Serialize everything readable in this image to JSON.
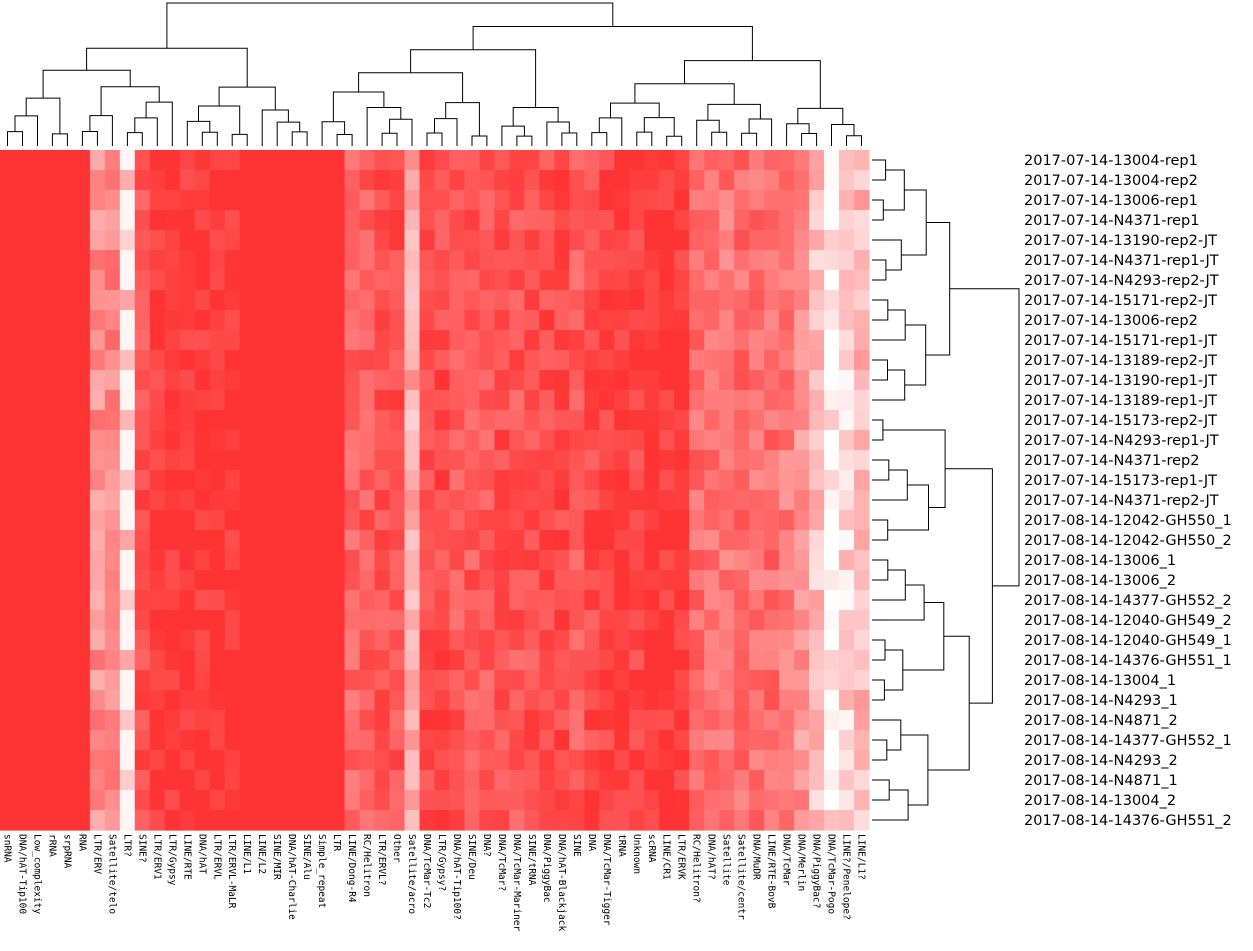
{
  "chart_data": {
    "type": "heatmap",
    "title": "",
    "colormap": {
      "high": "#ff3333",
      "low": "#ffffff"
    },
    "columns": [
      "snRNA",
      "DNA/hAT-Tip100",
      "Low_complexity",
      "rRNA",
      "srpRNA",
      "RNA",
      "LTR/ERV",
      "Satellite/telo",
      "LTR?",
      "SINE?",
      "LTR/ERV1",
      "LTR/Gypsy",
      "LINE/RTE",
      "DNA/hAT",
      "LTR/ERVL",
      "LTR/ERVL-MaLR",
      "LINE/L1",
      "LINE/L2",
      "SINE/MIR",
      "DNA/hAT-Charlie",
      "SINE/Alu",
      "Simple_repeat",
      "LTR",
      "LINE/Dong-R4",
      "RC/Helitron",
      "LTR/ERVL?",
      "Other",
      "Satellite/acro",
      "DNA/TcMar-Tc2",
      "LTR/Gypsy?",
      "DNA/hAT-Tip100?",
      "SINE/Deu",
      "DNA?",
      "DNA/TcMar?",
      "DNA/TcMar-Mariner",
      "SINE/tRNA",
      "DNA/PiggyBac",
      "DNA/hAT-Blackjack",
      "SINE",
      "DNA",
      "DNA/TcMar-Tigger",
      "tRNA",
      "Unknown",
      "scRNA",
      "LINE/CR1",
      "LTR/ERVK",
      "RC/Helitron?",
      "DNA/hAT?",
      "Satellite",
      "Satellite/centr",
      "DNA/MuDR",
      "LINE/RTE-BovB",
      "DNA/TcMar",
      "DNA/Merlin",
      "DNA/PiggyBac?",
      "DNA/TcMar-Pogo",
      "LINE?/Penelope?",
      "LINE/L1?"
    ],
    "rows": [
      "2017-07-14-13004-rep1",
      "2017-07-14-13004-rep2",
      "2017-07-14-13006-rep1",
      "2017-07-14-N4371-rep1",
      "2017-07-14-13190-rep2-JT",
      "2017-07-14-N4371-rep1-JT",
      "2017-07-14-N4293-rep2-JT",
      "2017-07-14-15171-rep2-JT",
      "2017-07-14-13006-rep2",
      "2017-07-14-15171-rep1-JT",
      "2017-07-14-13189-rep2-JT",
      "2017-07-14-13190-rep1-JT",
      "2017-07-14-13189-rep1-JT",
      "2017-07-14-15173-rep2-JT",
      "2017-07-14-N4293-rep1-JT",
      "2017-07-14-N4371-rep2",
      "2017-07-14-15173-rep1-JT",
      "2017-07-14-N4371-rep2-JT",
      "2017-08-14-12042-GH550_1",
      "2017-08-14-12042-GH550_2",
      "2017-08-14-13006_1",
      "2017-08-14-13006_2",
      "2017-08-14-14377-GH552_2",
      "2017-08-14-12040-GH549_2",
      "2017-08-14-12040-GH549_1",
      "2017-08-14-14376-GH551_1",
      "2017-08-14-13004_1",
      "2017-08-14-N4293_1",
      "2017-08-14-N4871_2",
      "2017-08-14-14377-GH552_1",
      "2017-08-14-N4293_2",
      "2017-08-14-N4871_1",
      "2017-08-14-13004_2",
      "2017-08-14-14376-GH551_2"
    ],
    "column_base_intensity": [
      1,
      1,
      1,
      1,
      1,
      1,
      0.55,
      0.6,
      0.25,
      0.85,
      0.95,
      0.97,
      0.98,
      0.97,
      0.97,
      0.98,
      1,
      1,
      1,
      1,
      1,
      1,
      1,
      0.75,
      0.8,
      0.85,
      0.85,
      0.4,
      0.9,
      0.88,
      0.82,
      0.82,
      0.8,
      0.86,
      0.82,
      0.85,
      0.88,
      0.9,
      0.8,
      0.88,
      0.93,
      0.95,
      0.9,
      0.97,
      0.97,
      0.96,
      0.72,
      0.7,
      0.68,
      0.72,
      0.7,
      0.72,
      0.65,
      0.55,
      0.3,
      0.1,
      0.2,
      0.35
    ],
    "row_dendrogram": "right",
    "column_dendrogram": "top"
  }
}
